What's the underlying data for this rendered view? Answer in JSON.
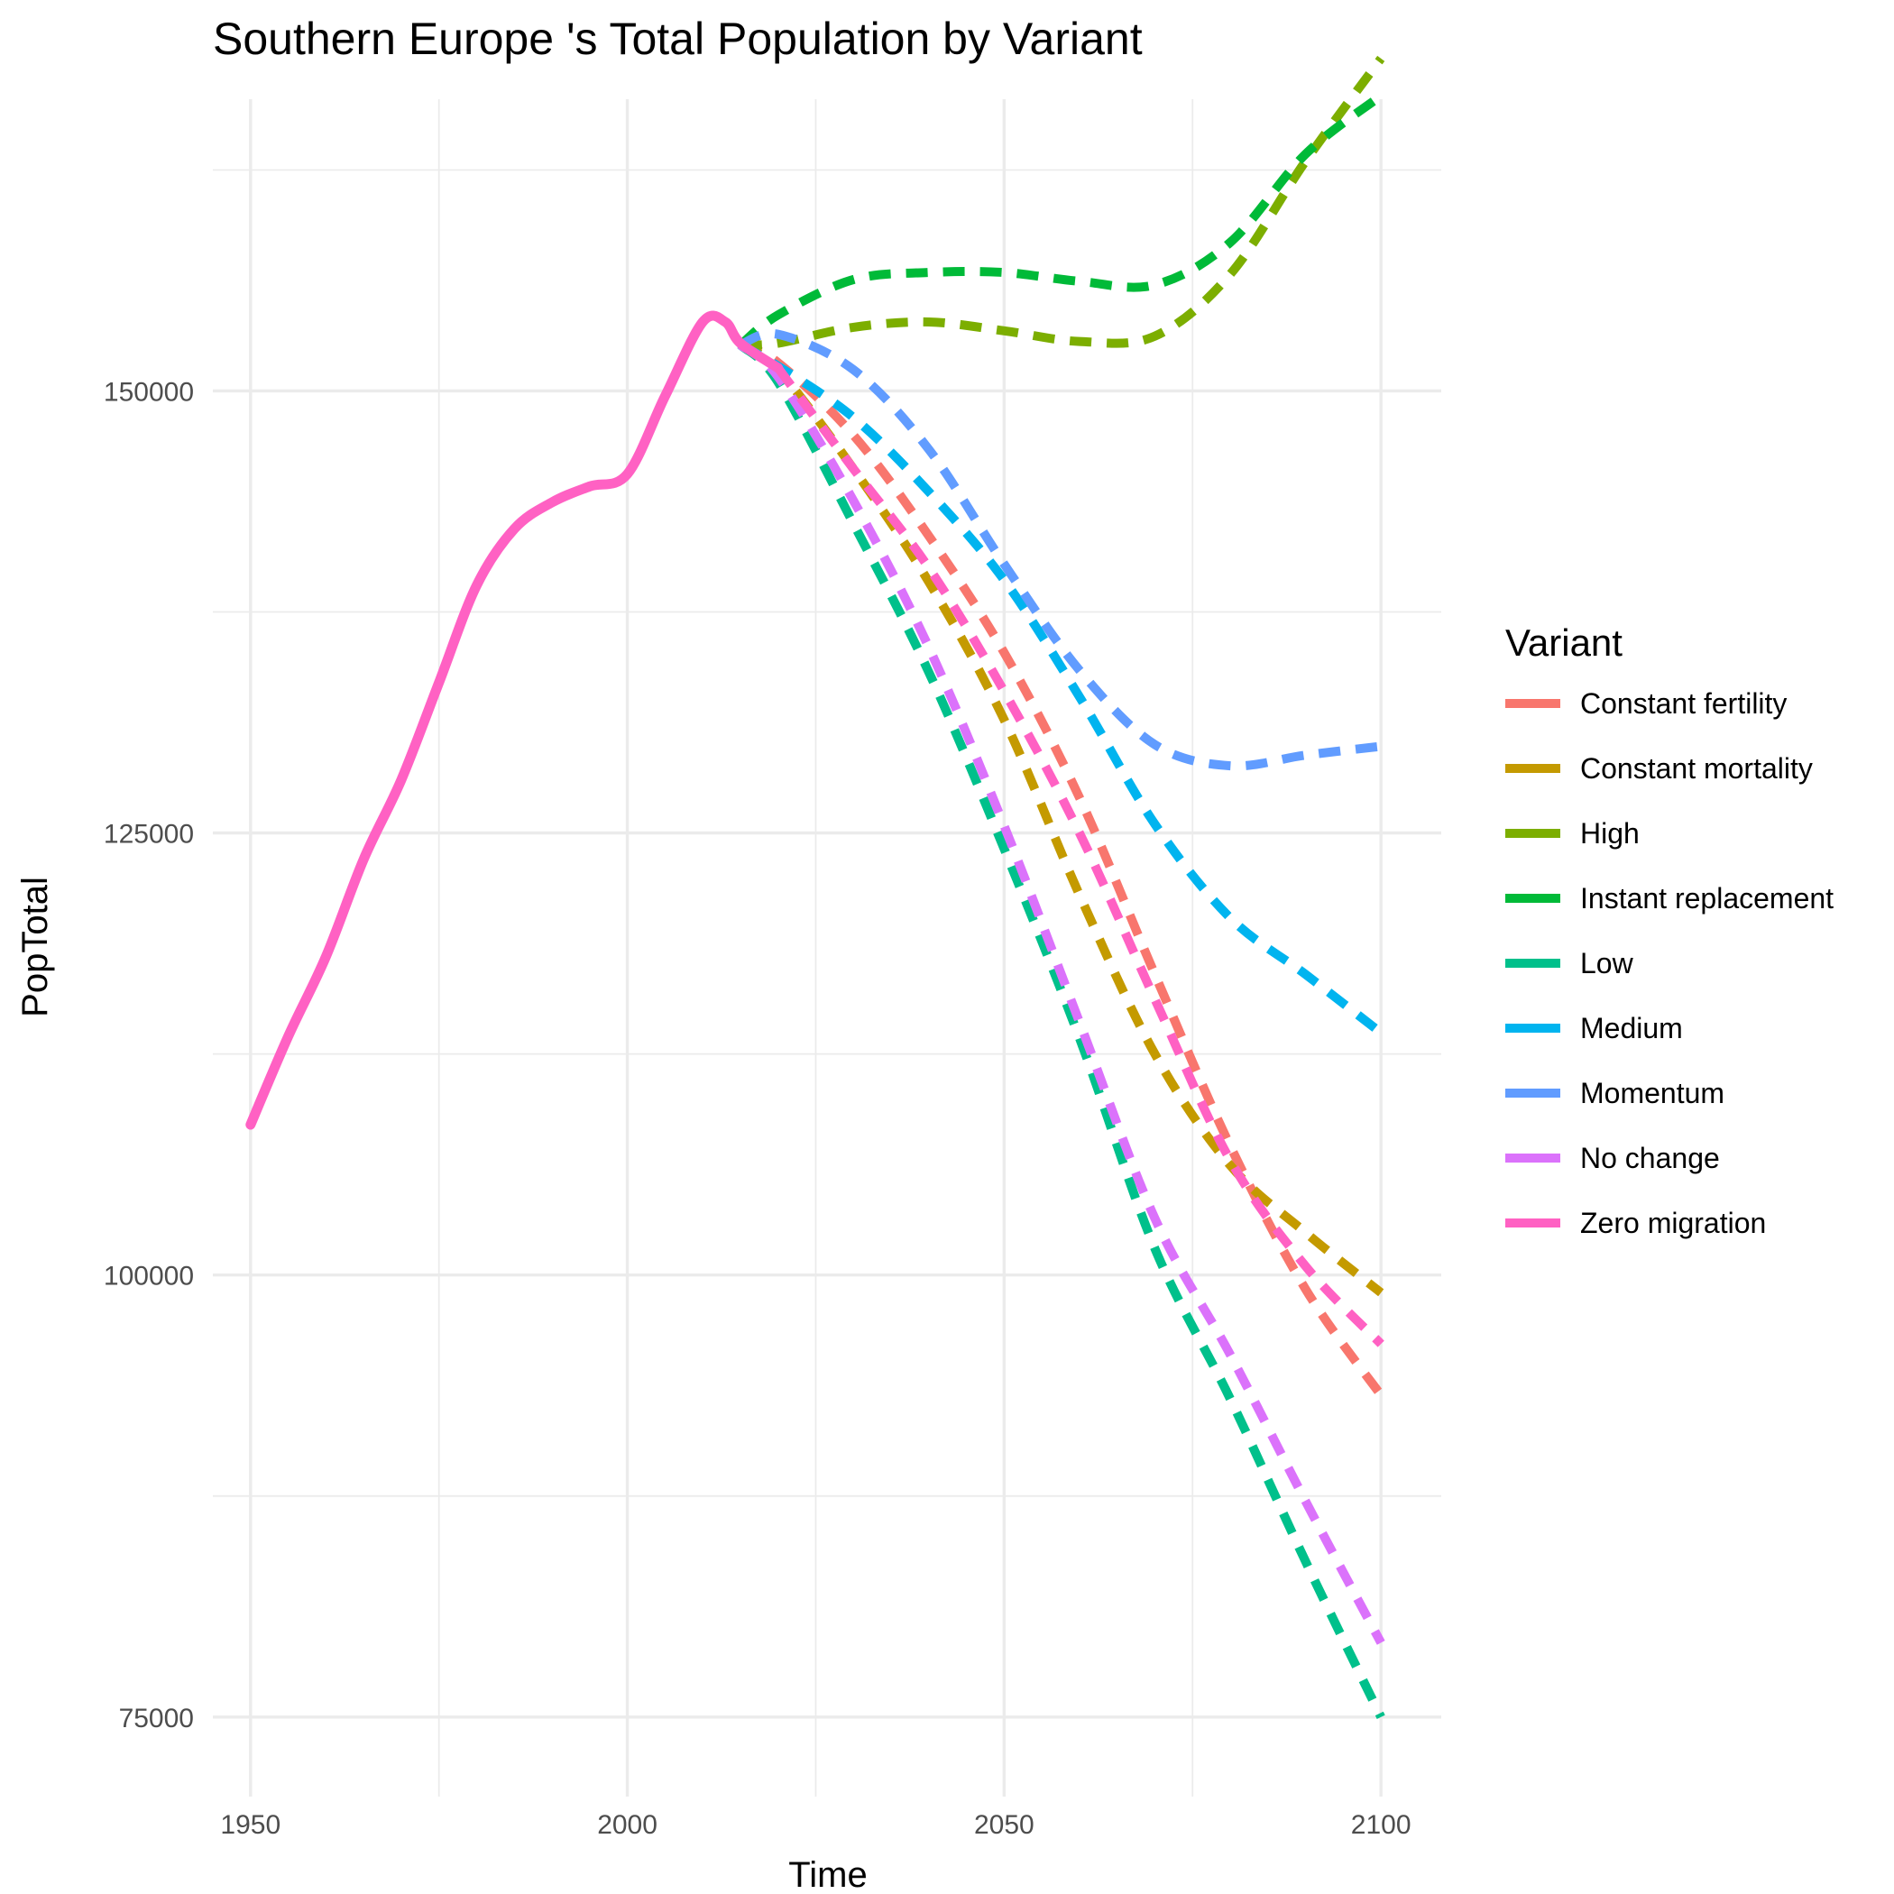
{
  "chart_data": {
    "type": "line",
    "title": "Southern Europe 's Total Population by Variant",
    "xlabel": "Time",
    "ylabel": "PopTotal",
    "xlim": [
      1945,
      2108
    ],
    "ylim": [
      70500,
      166500
    ],
    "x_ticks": [
      1950,
      2000,
      2050,
      2100
    ],
    "x_tick_labels": [
      "1950",
      "2000",
      "2050",
      "2100"
    ],
    "y_ticks": [
      75000,
      100000,
      125000,
      150000
    ],
    "y_tick_labels": [
      "75000",
      "100000",
      "125000",
      "150000"
    ],
    "grid": true,
    "legend": {
      "title": "Variant",
      "position": "right"
    },
    "series": [
      {
        "name": "Constant fertility",
        "color": "#F8766D",
        "dash": true,
        "x": [
          2015,
          2020,
          2030,
          2040,
          2050,
          2060,
          2070,
          2080,
          2090,
          2100
        ],
        "y": [
          152600,
          151600,
          147500,
          141800,
          135200,
          127000,
          117000,
          107300,
          99200,
          93200
        ]
      },
      {
        "name": "Constant mortality",
        "color": "#C49A00",
        "dash": true,
        "x": [
          2015,
          2020,
          2030,
          2040,
          2050,
          2060,
          2070,
          2080,
          2090,
          2100
        ],
        "y": [
          152600,
          151200,
          145600,
          139200,
          131400,
          121500,
          112500,
          106200,
          102400,
          99000
        ]
      },
      {
        "name": "High",
        "color": "#7CAE00",
        "dash": true,
        "x": [
          2015,
          2020,
          2030,
          2040,
          2050,
          2060,
          2070,
          2080,
          2090,
          2100
        ],
        "y": [
          152600,
          152700,
          153600,
          153900,
          153400,
          152800,
          153100,
          156600,
          163000,
          168800
        ]
      },
      {
        "name": "Instant replacement",
        "color": "#00BA38",
        "dash": true,
        "x": [
          2015,
          2020,
          2030,
          2040,
          2050,
          2060,
          2070,
          2080,
          2090,
          2100
        ],
        "y": [
          152600,
          154300,
          156300,
          156700,
          156700,
          156200,
          156000,
          158400,
          163400,
          166700
        ]
      },
      {
        "name": "Low",
        "color": "#00C08B",
        "dash": true,
        "x": [
          2015,
          2020,
          2030,
          2040,
          2050,
          2060,
          2070,
          2080,
          2090,
          2100
        ],
        "y": [
          152600,
          150500,
          142500,
          134100,
          124100,
          113400,
          101500,
          93000,
          83800,
          75000
        ]
      },
      {
        "name": "Medium",
        "color": "#00B4EF",
        "dash": true,
        "x": [
          2015,
          2020,
          2030,
          2040,
          2050,
          2060,
          2070,
          2080,
          2090,
          2100
        ],
        "y": [
          152600,
          151400,
          148500,
          144300,
          139300,
          132700,
          125500,
          120200,
          117000,
          113700
        ]
      },
      {
        "name": "Momentum",
        "color": "#619CFF",
        "dash": true,
        "x": [
          2015,
          2020,
          2030,
          2040,
          2050,
          2060,
          2070,
          2080,
          2090,
          2100
        ],
        "y": [
          152600,
          153200,
          151200,
          146700,
          140200,
          134200,
          130000,
          128800,
          129400,
          129900
        ]
      },
      {
        "name": "No change",
        "color": "#DB72FB",
        "dash": true,
        "x": [
          2015,
          2020,
          2030,
          2040,
          2050,
          2060,
          2070,
          2080,
          2090,
          2100
        ],
        "y": [
          152600,
          150800,
          143800,
          135500,
          125400,
          114300,
          103200,
          95500,
          87200,
          79200
        ]
      },
      {
        "name": "Zero migration",
        "color": "#FF61C3",
        "dash": false,
        "x": [
          1950,
          1955,
          1960,
          1965,
          1970,
          1975,
          1980,
          1985,
          1990,
          1995,
          2000,
          2005,
          2010,
          2013,
          2015,
          2020
        ],
        "y": [
          108500,
          113500,
          118000,
          123500,
          128000,
          133500,
          139000,
          142200,
          143700,
          144600,
          145300,
          149700,
          153900,
          153900,
          152700,
          151300
        ]
      },
      {
        "name": "Zero migration",
        "color": "#FF61C3",
        "dash": true,
        "legend": false,
        "x": [
          2020,
          2030,
          2040,
          2050,
          2060,
          2070,
          2080,
          2090,
          2100
        ],
        "y": [
          151300,
          145600,
          140000,
          133000,
          125000,
          115600,
          106500,
          100500,
          96100
        ]
      }
    ]
  }
}
